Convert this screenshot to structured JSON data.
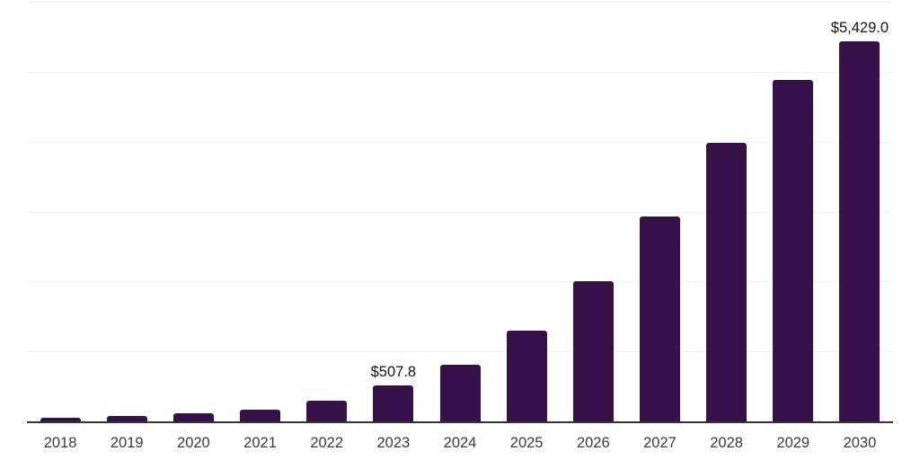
{
  "chart_data": {
    "type": "bar",
    "title": "",
    "xlabel": "",
    "ylabel": "",
    "categories": [
      "2018",
      "2019",
      "2020",
      "2021",
      "2022",
      "2023",
      "2024",
      "2025",
      "2026",
      "2027",
      "2028",
      "2029",
      "2030"
    ],
    "values": [
      50,
      72,
      110,
      170,
      296,
      507.8,
      805,
      1295,
      2000,
      2925,
      3980,
      4880,
      5429
    ],
    "value_labels": {
      "2023": "$507.8",
      "2030": "$5,429.0"
    },
    "ylim": [
      0,
      6000
    ],
    "gridline_step": 1000,
    "grid": true,
    "legend": false,
    "y_tick_labels_visible": false,
    "colors": {
      "bar": "#351049",
      "axis": "#333333",
      "gridline": "#f2f2f2",
      "x_tick_label": "#3a3a3a",
      "value_label": "#111111",
      "background": "#ffffff"
    }
  }
}
